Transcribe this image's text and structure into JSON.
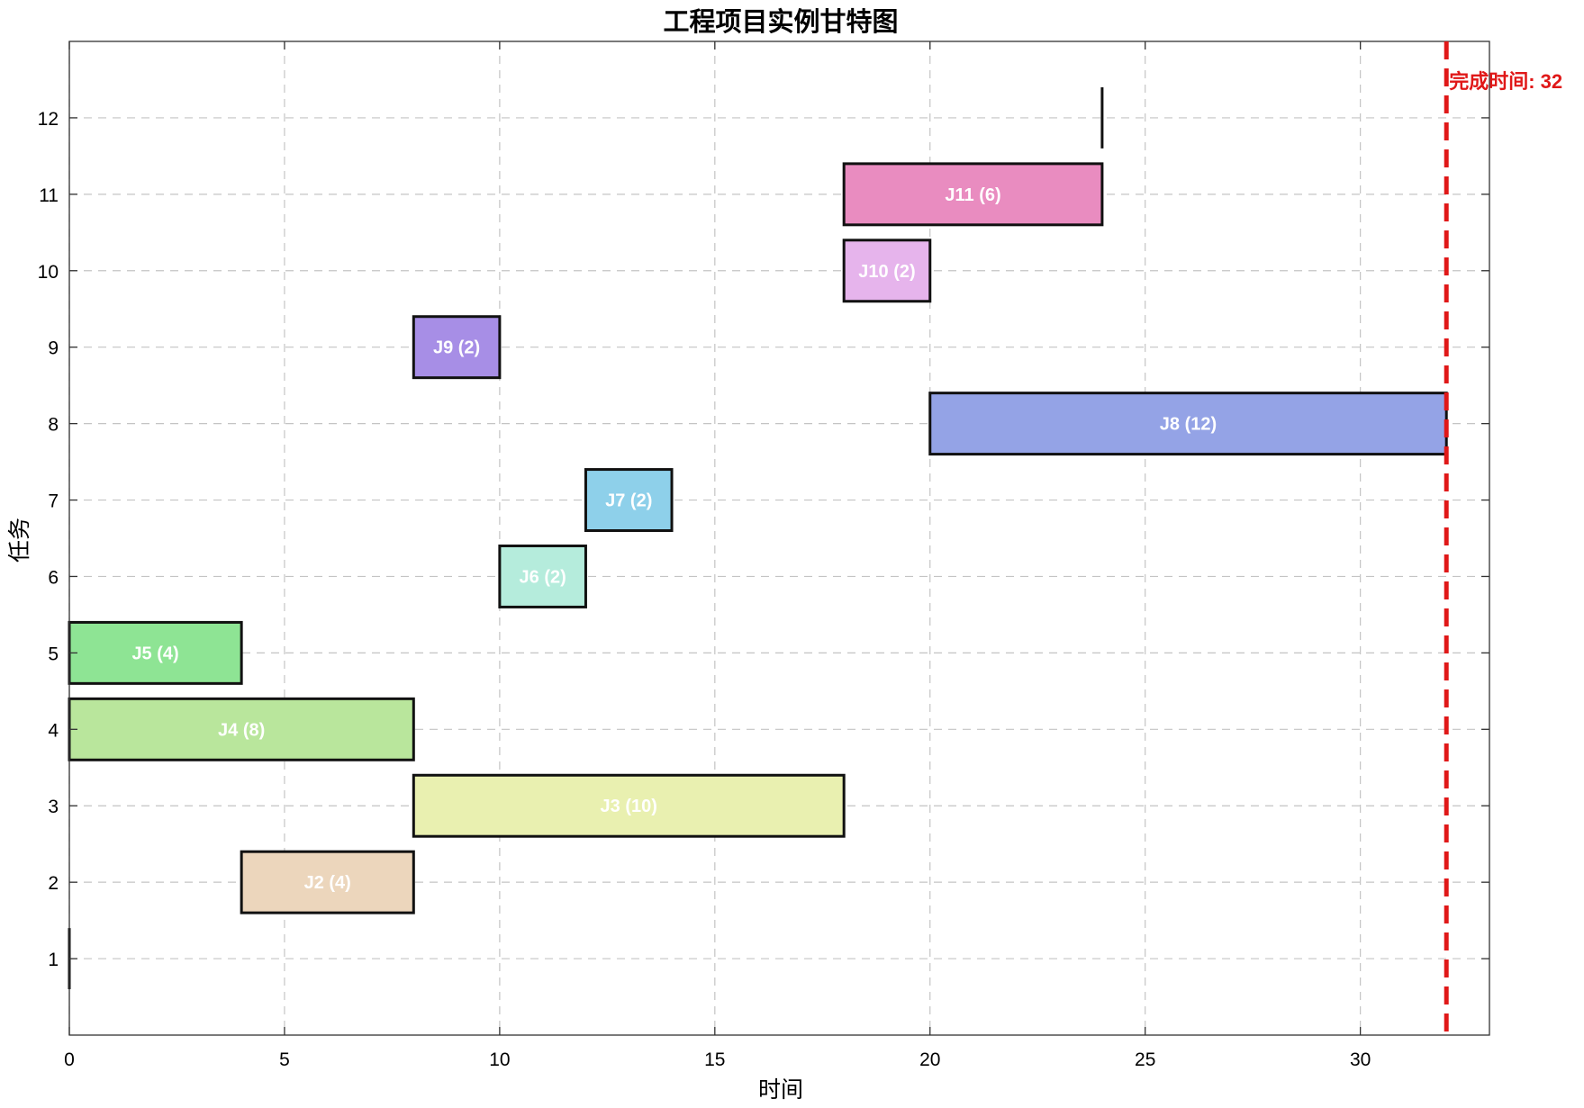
{
  "chart_data": {
    "type": "gantt",
    "title": "工程项目实例甘特图",
    "xlabel": "时间",
    "ylabel": "任务",
    "xlim": [
      0,
      33
    ],
    "ylim": [
      0,
      13
    ],
    "x_ticks": [
      0,
      5,
      10,
      15,
      20,
      25,
      30
    ],
    "y_ticks": [
      1,
      2,
      3,
      4,
      5,
      6,
      7,
      8,
      9,
      10,
      11,
      12
    ],
    "grid": true,
    "tasks": [
      {
        "row": 1,
        "start": 0,
        "duration": 0,
        "label": "",
        "color": "#ffffff"
      },
      {
        "row": 2,
        "start": 4,
        "duration": 4,
        "label": "J2 (4)",
        "color": "#ecd6bc"
      },
      {
        "row": 3,
        "start": 8,
        "duration": 10,
        "label": "J3 (10)",
        "color": "#e9f0b0"
      },
      {
        "row": 4,
        "start": 0,
        "duration": 8,
        "label": "J4 (8)",
        "color": "#b9e69c"
      },
      {
        "row": 5,
        "start": 0,
        "duration": 4,
        "label": "J5 (4)",
        "color": "#8ee494"
      },
      {
        "row": 6,
        "start": 10,
        "duration": 2,
        "label": "J6 (2)",
        "color": "#b5ecdc"
      },
      {
        "row": 7,
        "start": 12,
        "duration": 2,
        "label": "J7 (2)",
        "color": "#8ed0ea"
      },
      {
        "row": 8,
        "start": 20,
        "duration": 12,
        "label": "J8 (12)",
        "color": "#94a3e6"
      },
      {
        "row": 9,
        "start": 8,
        "duration": 2,
        "label": "J9 (2)",
        "color": "#a78ee6"
      },
      {
        "row": 10,
        "start": 18,
        "duration": 2,
        "label": "J10 (2)",
        "color": "#e6b4ec"
      },
      {
        "row": 11,
        "start": 18,
        "duration": 6,
        "label": "J11 (6)",
        "color": "#e98cc0"
      },
      {
        "row": 12,
        "start": 24,
        "duration": 0,
        "label": "",
        "color": "#ffffff"
      }
    ],
    "finish": {
      "value": 32,
      "label": "完成时间: 32",
      "color": "#e01818"
    }
  }
}
